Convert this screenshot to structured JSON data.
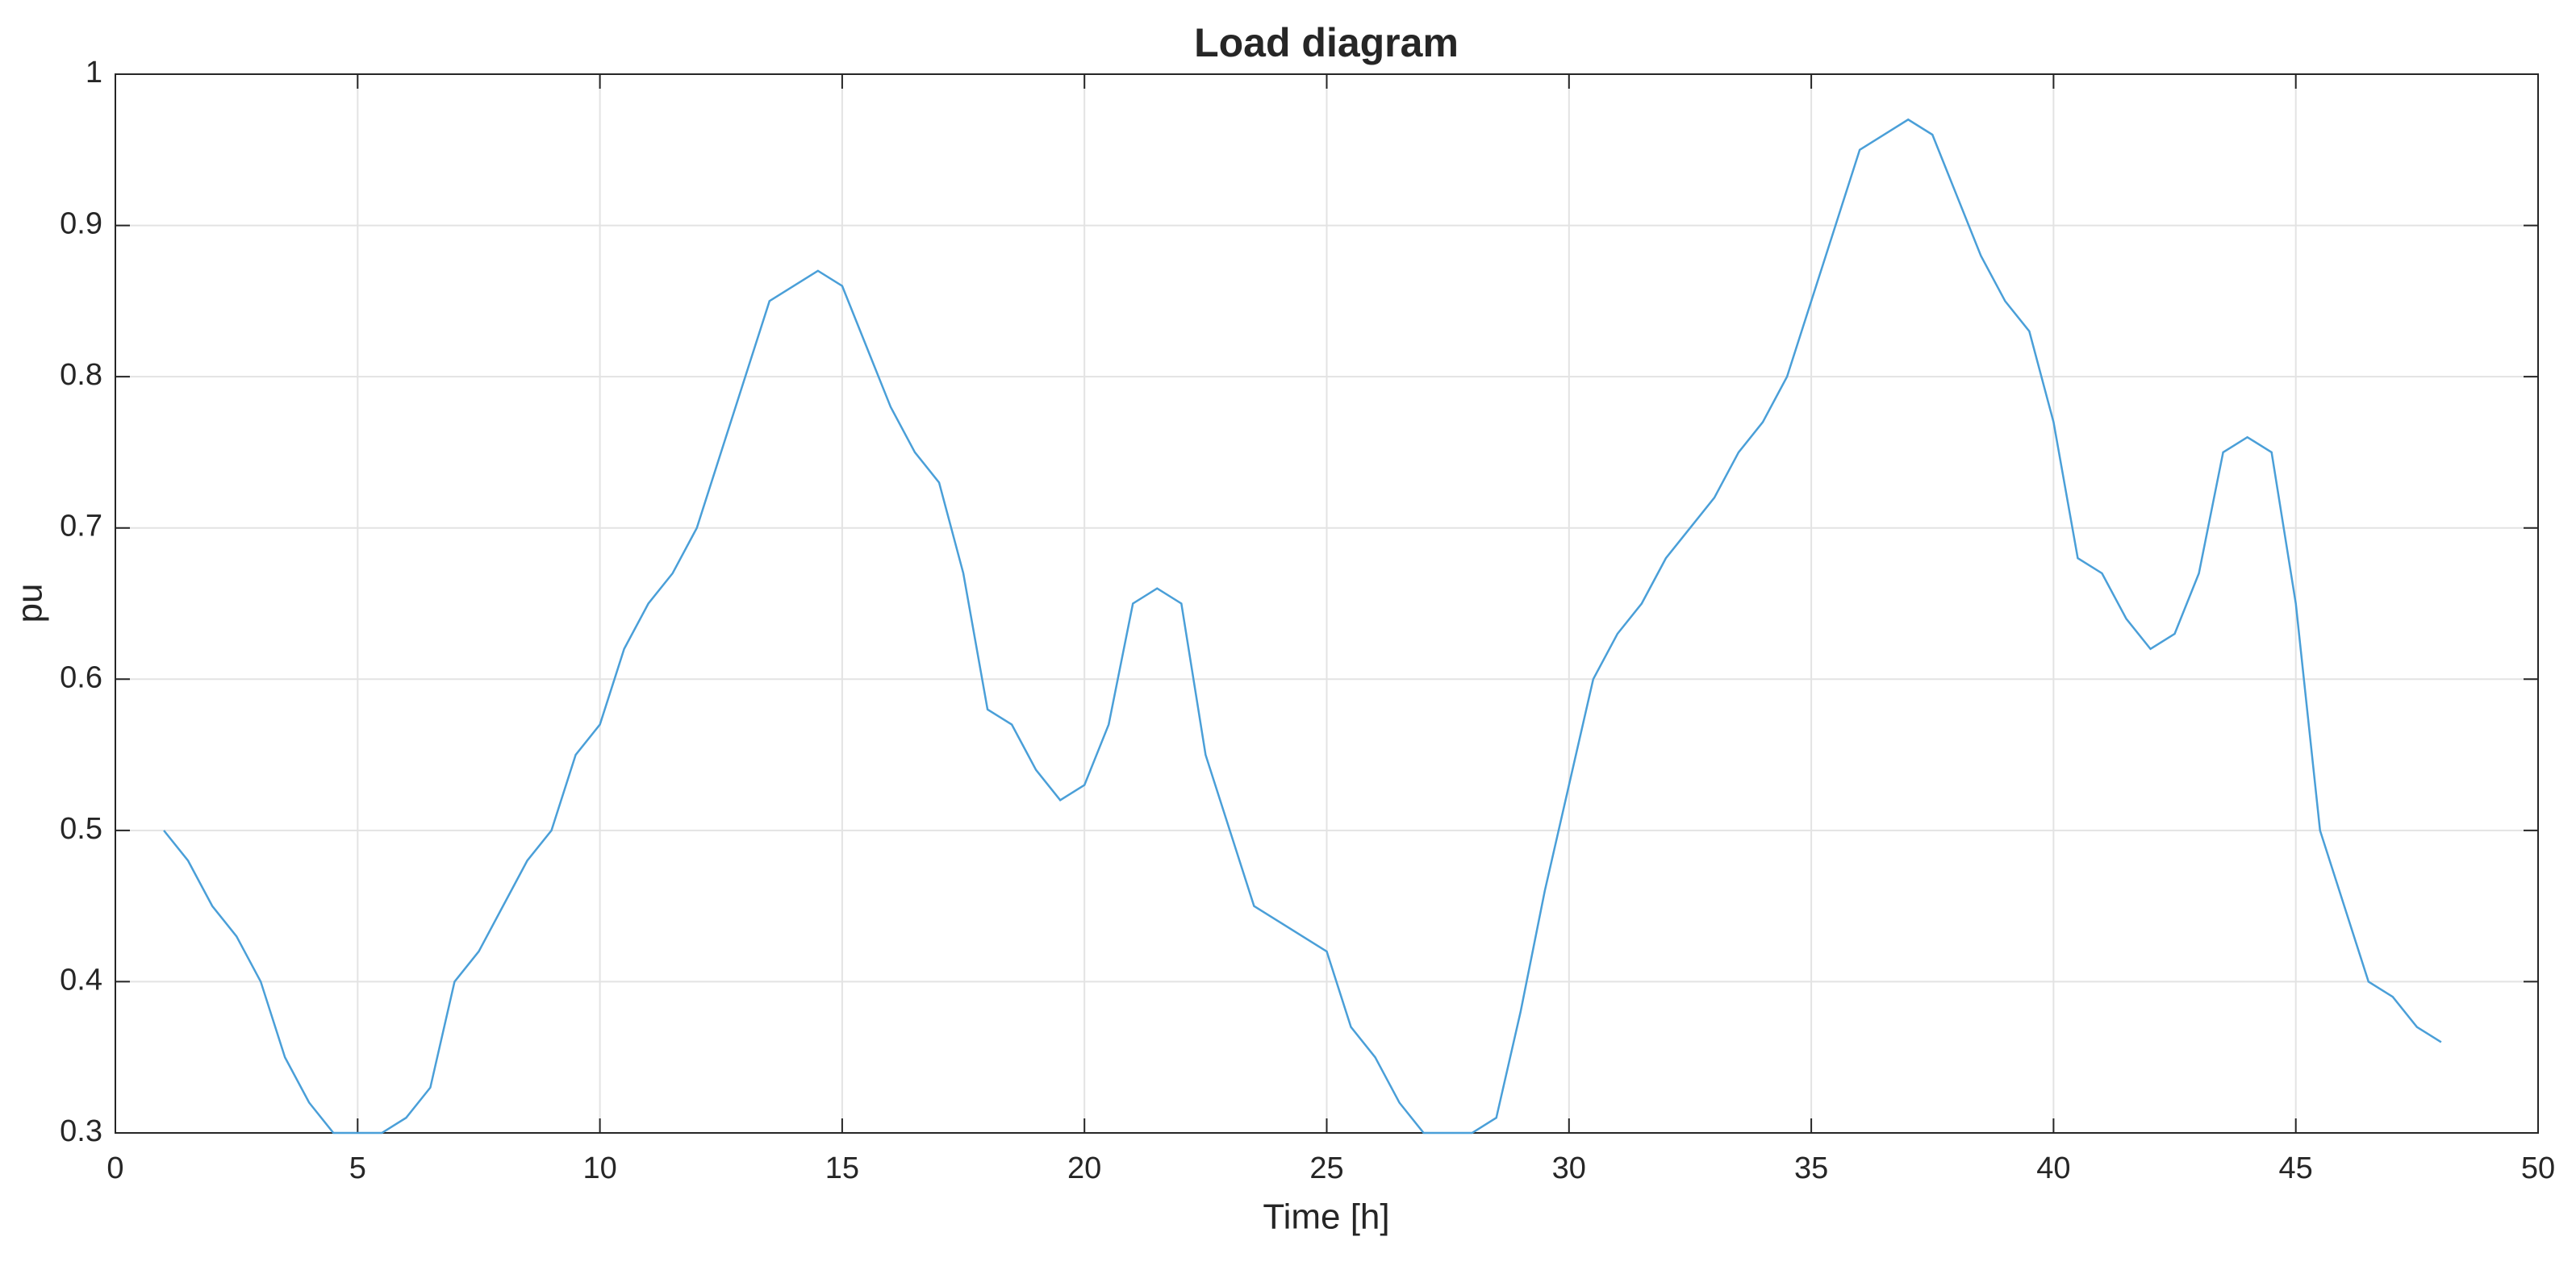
{
  "chart_data": {
    "type": "line",
    "title": "Load diagram",
    "x_label": "Time [h]",
    "y_label": "pu",
    "x": [
      1,
      1.5,
      2,
      2.5,
      3,
      3.5,
      4,
      4.5,
      5,
      5.5,
      6,
      6.5,
      7,
      7.5,
      8,
      8.5,
      9,
      9.5,
      10,
      10.5,
      11,
      11.5,
      12,
      12.5,
      13,
      13.5,
      14,
      14.5,
      15,
      15.5,
      16,
      16.5,
      17,
      17.5,
      18,
      18.5,
      19,
      19.5,
      20,
      20.5,
      21,
      21.5,
      22,
      22.5,
      23,
      23.5,
      24,
      24.5,
      25,
      25.5,
      26,
      26.5,
      27,
      27.5,
      28,
      28.5,
      29,
      29.5,
      30,
      30.5,
      31,
      31.5,
      32,
      32.5,
      33,
      33.5,
      34,
      34.5,
      35,
      35.5,
      36,
      36.5,
      37,
      37.5,
      38,
      38.5,
      39,
      39.5,
      40,
      40.5,
      41,
      41.5,
      42,
      42.5,
      43,
      43.5,
      44,
      44.5,
      45,
      45.5,
      46,
      46.5,
      47,
      47.5,
      48
    ],
    "series": [
      {
        "color": "#4a9fd8",
        "values": [
          0.5,
          0.48,
          0.45,
          0.43,
          0.4,
          0.35,
          0.32,
          0.3,
          0.3,
          0.3,
          0.31,
          0.33,
          0.4,
          0.42,
          0.45,
          0.48,
          0.5,
          0.55,
          0.57,
          0.62,
          0.65,
          0.67,
          0.7,
          0.75,
          0.8,
          0.85,
          0.86,
          0.87,
          0.86,
          0.82,
          0.78,
          0.75,
          0.73,
          0.67,
          0.58,
          0.57,
          0.54,
          0.52,
          0.53,
          0.57,
          0.65,
          0.66,
          0.65,
          0.55,
          0.5,
          0.45,
          0.44,
          0.43,
          0.42,
          0.37,
          0.35,
          0.32,
          0.3,
          0.3,
          0.3,
          0.31,
          0.38,
          0.46,
          0.53,
          0.6,
          0.63,
          0.65,
          0.68,
          0.7,
          0.72,
          0.75,
          0.77,
          0.8,
          0.85,
          0.9,
          0.95,
          0.96,
          0.97,
          0.96,
          0.92,
          0.88,
          0.85,
          0.83,
          0.77,
          0.68,
          0.67,
          0.64,
          0.62,
          0.63,
          0.67,
          0.75,
          0.76,
          0.75,
          0.65,
          0.5,
          0.45,
          0.4,
          0.39,
          0.37,
          0.36
        ]
      }
    ],
    "xlim": [
      0,
      50
    ],
    "xticks": [
      0,
      5,
      10,
      15,
      20,
      25,
      30,
      35,
      40,
      45,
      50
    ],
    "ylim": [
      0.3,
      1
    ],
    "yticks": [
      0.3,
      0.4,
      0.5,
      0.6,
      0.7,
      0.8,
      0.9,
      1
    ],
    "grid": true
  }
}
